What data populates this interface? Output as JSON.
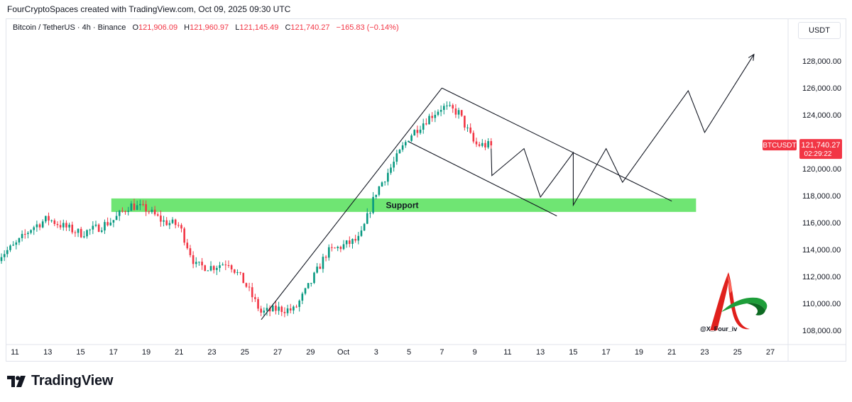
{
  "header": {
    "attribution": "FourCryptoSpaces created with TradingView.com, Oct 09, 2025 09:30 UTC"
  },
  "legend": {
    "symbol": "Bitcoin / TetherUS · 4h · Binance",
    "o_label": "O",
    "o_value": "121,906.09",
    "h_label": "H",
    "h_value": "121,960.97",
    "l_label": "L",
    "l_value": "121,145.49",
    "c_label": "C",
    "c_value": "121,740.27",
    "change": "−165.83 (−0.14%)"
  },
  "currency_button": "USDT",
  "price_tag": {
    "ticker": "BTCUSDT",
    "price": "121,740.27",
    "countdown": "02:29:22",
    "color": "#f23645"
  },
  "watermark": {
    "handle": "@X_Four_iv"
  },
  "footer": {
    "brand": "TradingView"
  },
  "colors": {
    "up": "#089981",
    "down": "#f23645",
    "support_zone": "#56e05a"
  },
  "chart_data": {
    "type": "candlestick",
    "title": "Bitcoin / TetherUS · 4h · Binance",
    "x_ticks": [
      "11",
      "13",
      "15",
      "17",
      "19",
      "21",
      "23",
      "25",
      "27",
      "29",
      "Oct",
      "3",
      "5",
      "7",
      "9",
      "11",
      "13",
      "15",
      "17",
      "19",
      "21",
      "23",
      "25",
      "27"
    ],
    "y_ticks": [
      "108,000.00",
      "110,000.00",
      "112,000.00",
      "114,000.00",
      "116,000.00",
      "118,000.00",
      "120,000.00",
      "122,000.00",
      "124,000.00",
      "126,000.00",
      "128,000.00"
    ],
    "ylim": [
      107000,
      129800
    ],
    "grid": false,
    "price_path": [
      {
        "date": "Sep 10",
        "price": 113500
      },
      {
        "date": "Sep 11",
        "price": 114300
      },
      {
        "date": "Sep 12",
        "price": 115600
      },
      {
        "date": "Sep 13",
        "price": 116300
      },
      {
        "date": "Sep 14",
        "price": 115700
      },
      {
        "date": "Sep 15",
        "price": 115200
      },
      {
        "date": "Sep 16",
        "price": 115600
      },
      {
        "date": "Sep 17",
        "price": 116200
      },
      {
        "date": "Sep 18",
        "price": 117300
      },
      {
        "date": "Sep 19",
        "price": 117000
      },
      {
        "date": "Sep 20",
        "price": 116100
      },
      {
        "date": "Sep 21",
        "price": 115800
      },
      {
        "date": "Sep 22",
        "price": 112800
      },
      {
        "date": "Sep 23",
        "price": 112700
      },
      {
        "date": "Sep 24",
        "price": 113100
      },
      {
        "date": "Sep 25",
        "price": 111500
      },
      {
        "date": "Sep 26",
        "price": 109300
      },
      {
        "date": "Sep 27",
        "price": 109600
      },
      {
        "date": "Sep 28",
        "price": 109500
      },
      {
        "date": "Sep 29",
        "price": 111500
      },
      {
        "date": "Sep 30",
        "price": 113800
      },
      {
        "date": "Oct 01",
        "price": 114800
      },
      {
        "date": "Oct 02",
        "price": 118300
      },
      {
        "date": "Oct 03",
        "price": 120300
      },
      {
        "date": "Oct 04",
        "price": 122400
      },
      {
        "date": "Oct 05",
        "price": 123600
      },
      {
        "date": "Oct 06",
        "price": 124600
      },
      {
        "date": "Oct 07",
        "price": 124200
      },
      {
        "date": "Oct 08",
        "price": 121800
      },
      {
        "date": "Oct 09",
        "price": 121740
      }
    ],
    "support_zone": {
      "label": "Support",
      "from": 116800,
      "to": 117800,
      "start_date": "Sep 17",
      "end_date": "Oct 21"
    },
    "drawings": [
      {
        "name": "rising-channel-line",
        "points": [
          {
            "date": "Sep 26",
            "price": 108800
          },
          {
            "date": "Oct 06",
            "price": 126000
          }
        ]
      },
      {
        "name": "falling-channel-upper",
        "points": [
          {
            "date": "Oct 06",
            "price": 126000
          },
          {
            "date": "Oct 20",
            "price": 117600
          }
        ]
      },
      {
        "name": "falling-channel-lower",
        "points": [
          {
            "date": "Oct 04",
            "price": 122000
          },
          {
            "date": "Oct 13",
            "price": 116500
          }
        ]
      },
      {
        "name": "projection-path",
        "points": [
          {
            "date": "Oct 09",
            "price": 121500
          },
          {
            "date": "Oct 09",
            "price": 119500
          },
          {
            "date": "Oct 11",
            "price": 121500
          },
          {
            "date": "Oct 12",
            "price": 117900
          },
          {
            "date": "Oct 14",
            "price": 121200
          },
          {
            "date": "Oct 14",
            "price": 117300
          },
          {
            "date": "Oct 16",
            "price": 121500
          },
          {
            "date": "Oct 17",
            "price": 119000
          },
          {
            "date": "Oct 21",
            "price": 125800
          },
          {
            "date": "Oct 22",
            "price": 122700
          },
          {
            "date": "Oct 25",
            "price": 128500
          }
        ]
      }
    ]
  }
}
